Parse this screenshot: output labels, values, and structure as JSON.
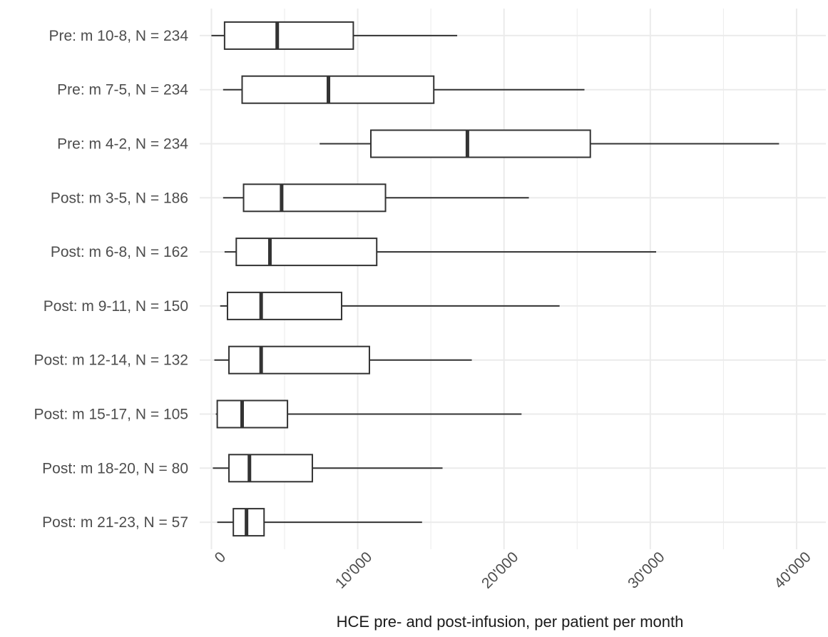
{
  "chart_data": {
    "type": "boxplot",
    "orientation": "horizontal",
    "title": "",
    "xlabel": "HCE pre- and post-infusion, per patient per month",
    "ylabel": "",
    "xlim": [
      -800,
      42000
    ],
    "x_ticks": [
      {
        "value": 0,
        "label": "0"
      },
      {
        "value": 10000,
        "label": "10'000"
      },
      {
        "value": 20000,
        "label": "20'000"
      },
      {
        "value": 30000,
        "label": "30'000"
      },
      {
        "value": 40000,
        "label": "40'000"
      }
    ],
    "grid": true,
    "colors": {
      "box_fill": "#ffffff",
      "box_stroke": "#333333",
      "grid": "#ebebeb"
    },
    "groups": [
      {
        "label": "Pre: m 10-8, N = 234",
        "whisker_low": 0,
        "q1": 900,
        "median": 4500,
        "q3": 9700,
        "whisker_high": 16800
      },
      {
        "label": "Pre: m 7-5, N = 234",
        "whisker_low": 800,
        "q1": 2100,
        "median": 8000,
        "q3": 15200,
        "whisker_high": 25500
      },
      {
        "label": "Pre: m 4-2, N = 234",
        "whisker_low": 7400,
        "q1": 10900,
        "median": 17500,
        "q3": 25900,
        "whisker_high": 38800
      },
      {
        "label": "Post: m 3-5, N = 186",
        "whisker_low": 800,
        "q1": 2200,
        "median": 4800,
        "q3": 11900,
        "whisker_high": 21700
      },
      {
        "label": "Post: m 6-8, N = 162",
        "whisker_low": 900,
        "q1": 1700,
        "median": 4000,
        "q3": 11300,
        "whisker_high": 30400
      },
      {
        "label": "Post: m 9-11, N = 150",
        "whisker_low": 600,
        "q1": 1100,
        "median": 3400,
        "q3": 8900,
        "whisker_high": 23800
      },
      {
        "label": "Post: m 12-14, N = 132",
        "whisker_low": 200,
        "q1": 1200,
        "median": 3400,
        "q3": 10800,
        "whisker_high": 17800
      },
      {
        "label": "Post: m 15-17, N = 105",
        "whisker_low": 300,
        "q1": 400,
        "median": 2100,
        "q3": 5200,
        "whisker_high": 21200
      },
      {
        "label": "Post: m 18-20, N = 80",
        "whisker_low": 100,
        "q1": 1200,
        "median": 2600,
        "q3": 6900,
        "whisker_high": 15800
      },
      {
        "label": "Post: m 21-23, N = 57",
        "whisker_low": 400,
        "q1": 1500,
        "median": 2400,
        "q3": 3600,
        "whisker_high": 14400
      }
    ]
  }
}
